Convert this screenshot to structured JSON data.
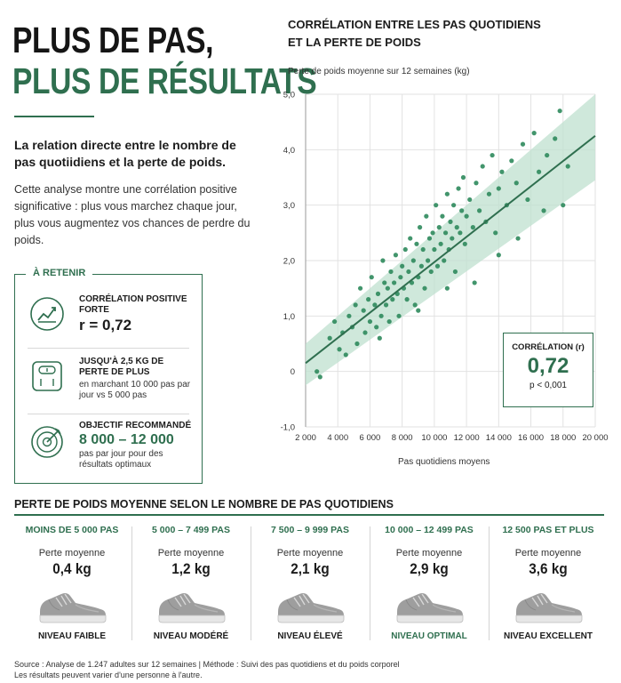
{
  "headline": {
    "line1": "PLUS DE PAS,",
    "line2": "PLUS DE RÉSULTATS"
  },
  "intro": {
    "lead": "La relation directe entre le nombre de pas quotiidiens et la perte de poids.",
    "body": "Cette analyse montre une corrélation positive significative : plus vous marchez chaque jour, plus vous augmentez vos chances de perdre du poids."
  },
  "retenir": {
    "title": "À RETENIR",
    "items": [
      {
        "icon": "trend-chart-icon",
        "head": "CORRÉLATION POSITIVE FORTE",
        "big": "r = 0,72"
      },
      {
        "icon": "scale-icon",
        "head": "JUSQU'À 2,5 KG DE PERTE DE PLUS",
        "sub": "en marchant 10 000 pas par jour vs 5 000 pas"
      },
      {
        "icon": "target-icon",
        "head": "OBJECTIF RECOMMANDÉ",
        "green": "8 000 – 12 000",
        "sub": "pas par jour pour des résultats optimaux"
      }
    ]
  },
  "chart_data": {
    "type": "scatter",
    "title": "CORRÉLATION ENTRE LES PAS QUOTIDIENS ET LA PERTE DE POIDS",
    "ylabel": "Perte de poids moyenne sur 12 semaines (kg)",
    "xlabel": "Pas quotidiens moyens",
    "xlim": [
      2000,
      20000
    ],
    "ylim": [
      -1.0,
      5.0
    ],
    "x_ticks": [
      2000,
      4000,
      6000,
      8000,
      10000,
      12000,
      14000,
      16000,
      18000,
      20000
    ],
    "x_tick_labels": [
      "2 000",
      "4 000",
      "6 000",
      "8 000",
      "10 000",
      "12 000",
      "14 000",
      "16 000",
      "18 000",
      "20 000"
    ],
    "y_ticks": [
      -1.0,
      0,
      1.0,
      2.0,
      3.0,
      4.0,
      5.0
    ],
    "y_tick_labels": [
      "-1,0",
      "0",
      "1,0",
      "2,0",
      "3,0",
      "4,0",
      "5,0"
    ],
    "grid": true,
    "trendline": {
      "x": [
        2000,
        20000
      ],
      "y": [
        0.15,
        4.25
      ]
    },
    "confidence_band": {
      "x": [
        2000,
        20000
      ],
      "lower": [
        -0.25,
        3.45
      ],
      "upper": [
        0.5,
        5.0
      ]
    },
    "correlation": {
      "title": "CORRÉLATION (r)",
      "value": "0,72",
      "p": "p < 0,001"
    },
    "points": [
      [
        2700,
        0.0
      ],
      [
        2900,
        -0.1
      ],
      [
        3500,
        0.6
      ],
      [
        3800,
        0.9
      ],
      [
        4100,
        0.4
      ],
      [
        4300,
        0.7
      ],
      [
        4500,
        0.3
      ],
      [
        4700,
        1.0
      ],
      [
        4900,
        0.8
      ],
      [
        5100,
        1.2
      ],
      [
        5200,
        0.5
      ],
      [
        5400,
        1.5
      ],
      [
        5600,
        1.1
      ],
      [
        5700,
        0.7
      ],
      [
        5900,
        1.3
      ],
      [
        6000,
        0.9
      ],
      [
        6100,
        1.7
      ],
      [
        6300,
        1.2
      ],
      [
        6400,
        0.8
      ],
      [
        6500,
        1.4
      ],
      [
        6700,
        1.0
      ],
      [
        6800,
        2.0
      ],
      [
        6900,
        1.6
      ],
      [
        7000,
        1.2
      ],
      [
        7100,
        1.5
      ],
      [
        7200,
        0.9
      ],
      [
        7300,
        1.8
      ],
      [
        7400,
        1.3
      ],
      [
        7500,
        1.6
      ],
      [
        7600,
        2.1
      ],
      [
        7700,
        1.4
      ],
      [
        7800,
        1.0
      ],
      [
        7900,
        1.7
      ],
      [
        8000,
        1.9
      ],
      [
        8100,
        1.5
      ],
      [
        8200,
        2.2
      ],
      [
        8300,
        1.3
      ],
      [
        8400,
        1.8
      ],
      [
        8500,
        2.4
      ],
      [
        8600,
        1.6
      ],
      [
        8700,
        2.0
      ],
      [
        8800,
        1.2
      ],
      [
        8900,
        2.3
      ],
      [
        9000,
        1.7
      ],
      [
        9100,
        2.6
      ],
      [
        9200,
        1.9
      ],
      [
        9300,
        2.2
      ],
      [
        9400,
        1.5
      ],
      [
        9500,
        2.8
      ],
      [
        9600,
        2.0
      ],
      [
        9700,
        2.4
      ],
      [
        9800,
        1.8
      ],
      [
        9900,
        2.5
      ],
      [
        10000,
        2.2
      ],
      [
        10100,
        3.0
      ],
      [
        10200,
        1.9
      ],
      [
        10300,
        2.6
      ],
      [
        10400,
        2.3
      ],
      [
        10500,
        2.8
      ],
      [
        10600,
        2.0
      ],
      [
        10700,
        2.5
      ],
      [
        10800,
        3.2
      ],
      [
        10900,
        2.2
      ],
      [
        11000,
        2.7
      ],
      [
        11100,
        2.4
      ],
      [
        11200,
        3.0
      ],
      [
        11300,
        1.8
      ],
      [
        11400,
        2.6
      ],
      [
        11500,
        3.3
      ],
      [
        11600,
        2.5
      ],
      [
        11700,
        2.9
      ],
      [
        11800,
        3.5
      ],
      [
        11900,
        2.3
      ],
      [
        12000,
        2.8
      ],
      [
        12200,
        3.1
      ],
      [
        12400,
        2.6
      ],
      [
        12600,
        3.4
      ],
      [
        12800,
        2.9
      ],
      [
        13000,
        3.7
      ],
      [
        13200,
        2.7
      ],
      [
        13400,
        3.2
      ],
      [
        13600,
        3.9
      ],
      [
        13800,
        2.5
      ],
      [
        14000,
        3.3
      ],
      [
        14200,
        3.6
      ],
      [
        14500,
        3.0
      ],
      [
        14800,
        3.8
      ],
      [
        15100,
        3.4
      ],
      [
        15500,
        4.1
      ],
      [
        15800,
        3.1
      ],
      [
        16200,
        4.3
      ],
      [
        16500,
        3.6
      ],
      [
        17000,
        3.9
      ],
      [
        17500,
        4.2
      ],
      [
        17800,
        4.7
      ],
      [
        18300,
        3.7
      ],
      [
        18000,
        3.0
      ],
      [
        16800,
        2.9
      ],
      [
        15200,
        2.4
      ],
      [
        12500,
        1.6
      ],
      [
        9000,
        1.1
      ],
      [
        6600,
        0.6
      ],
      [
        10800,
        1.5
      ],
      [
        14000,
        2.1
      ]
    ]
  },
  "section": {
    "title": "PERTE DE POIDS MOYENNE SELON LE NOMBRE DE PAS QUOTIDIENS",
    "stat_label": "Perte moyenne",
    "categories": [
      {
        "range": "MOINS DE 5 000 PAS",
        "value": "0,4 kg",
        "level": "NIVEAU FAIBLE",
        "shoe_icon": "sneaker-icon"
      },
      {
        "range": "5 000 – 7 499 PAS",
        "value": "1,2 kg",
        "level": "NIVEAU MODÉRÉ",
        "shoe_icon": "sneaker-icon"
      },
      {
        "range": "7 500 – 9 999 PAS",
        "value": "2,1 kg",
        "level": "NIVEAU ÉLEVÉ",
        "shoe_icon": "sneaker-icon"
      },
      {
        "range": "10 000 – 12 499 PAS",
        "value": "2,9 kg",
        "level": "NIVEAU OPTIMAL",
        "shoe_icon": "sneaker-icon"
      },
      {
        "range": "12 500 PAS ET PLUS",
        "value": "3,6 kg",
        "level": "NIVEAU EXCELLENT",
        "shoe_icon": "sneaker-icon"
      }
    ]
  },
  "source": {
    "line1": "Source : Analyse de 1.247 adultes sur 12 semaines | Méthode : Suivi des pas quotidiens et du poids corporel",
    "line2": "Les résultats peuvent varier d'une personne à l'autre."
  },
  "colors": {
    "accent": "#2f6f4f",
    "point": "#2e8a5c",
    "band": "#bfe0cf"
  }
}
